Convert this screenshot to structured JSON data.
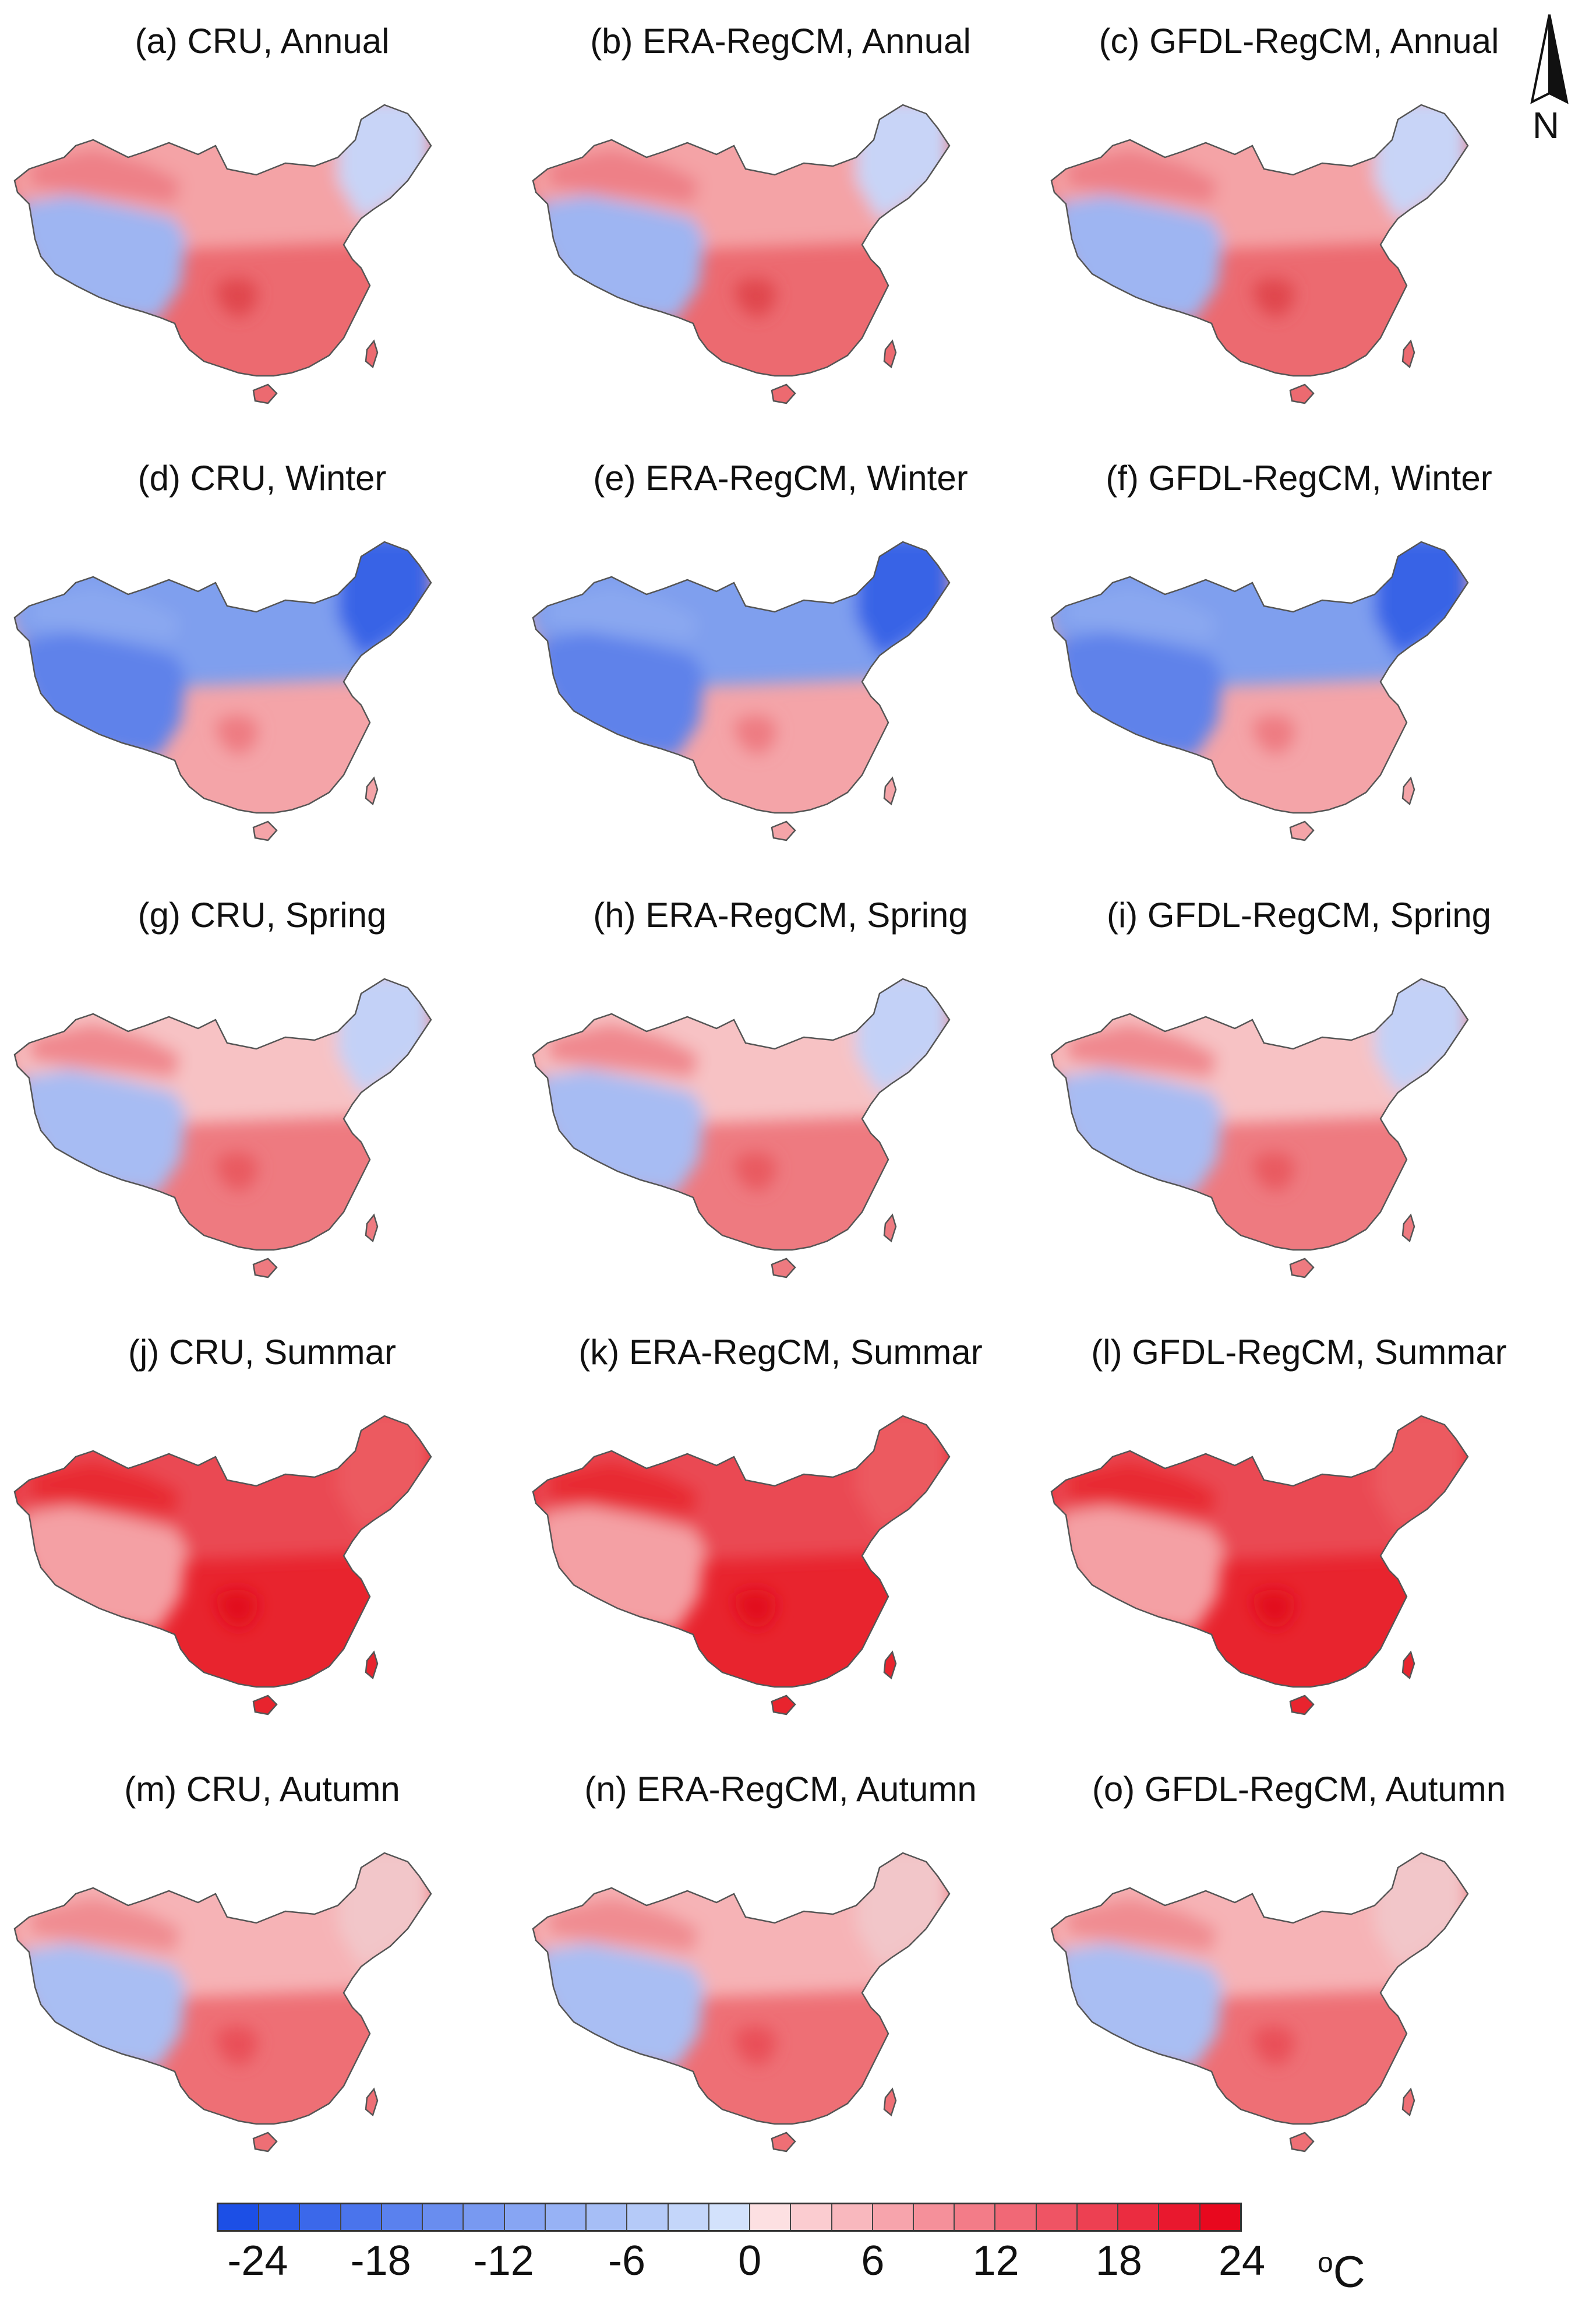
{
  "figure": {
    "panels": [
      {
        "id": "a",
        "title": "(a) CRU, Annual",
        "season": "annual"
      },
      {
        "id": "b",
        "title": "(b) ERA-RegCM, Annual",
        "season": "annual"
      },
      {
        "id": "c",
        "title": "(c) GFDL-RegCM, Annual",
        "season": "annual"
      },
      {
        "id": "d",
        "title": "(d) CRU, Winter",
        "season": "winter"
      },
      {
        "id": "e",
        "title": "(e) ERA-RegCM, Winter",
        "season": "winter"
      },
      {
        "id": "f",
        "title": "(f) GFDL-RegCM, Winter",
        "season": "winter"
      },
      {
        "id": "g",
        "title": "(g) CRU, Spring",
        "season": "spring"
      },
      {
        "id": "h",
        "title": "(h) ERA-RegCM, Spring",
        "season": "spring"
      },
      {
        "id": "i",
        "title": "(i) GFDL-RegCM, Spring",
        "season": "spring"
      },
      {
        "id": "j",
        "title": "(j) CRU, Summar",
        "season": "summer"
      },
      {
        "id": "k",
        "title": "(k) ERA-RegCM, Summar",
        "season": "summer"
      },
      {
        "id": "l",
        "title": "(l) GFDL-RegCM, Summar",
        "season": "summer"
      },
      {
        "id": "m",
        "title": "(m) CRU, Autumn",
        "season": "autumn"
      },
      {
        "id": "n",
        "title": "(n) ERA-RegCM, Autumn",
        "season": "autumn"
      },
      {
        "id": "o",
        "title": "(o) GFDL-RegCM, Autumn",
        "season": "autumn"
      }
    ],
    "north_label": "N",
    "colorbar": {
      "ticks": [
        "-24",
        "-18",
        "-12",
        "-6",
        "0",
        "6",
        "12",
        "18",
        "24"
      ],
      "unit_deg": "o",
      "unit_letter": "C",
      "colors": [
        "#1c4fe6",
        "#2c5ce8",
        "#3b68ea",
        "#4a74ec",
        "#5a81ee",
        "#698def",
        "#7899f1",
        "#87a5f3",
        "#97b2f5",
        "#a6bef6",
        "#b5caf8",
        "#c4d6fa",
        "#d3e2fc",
        "#fde0e2",
        "#fbccd0",
        "#f9b8be",
        "#f7a4ac",
        "#f5909a",
        "#f37c88",
        "#f16876",
        "#ef5464",
        "#ed4052",
        "#eb2c40",
        "#e9182e",
        "#e8081e"
      ]
    },
    "season_fill": {
      "annual": {
        "south": "#ec6a70",
        "north": "#f4a3a6",
        "plateau": "#9eb5f2",
        "northeast": "#c8d4f7",
        "basin": "#e0464e",
        "desert": "#ee8087"
      },
      "winter": {
        "south": "#f4a4a8",
        "north": "#7f9fee",
        "plateau": "#5e82ea",
        "northeast": "#3763e6",
        "basin": "#ee7c82",
        "desert": "#8aa7f0"
      },
      "spring": {
        "south": "#ee7a80",
        "north": "#f7c2c4",
        "plateau": "#a7bcf3",
        "northeast": "#c3d1f7",
        "basin": "#e95a61",
        "desert": "#f0888e"
      },
      "summer": {
        "south": "#e8242e",
        "north": "#ea4a52",
        "plateau": "#f4a0a4",
        "northeast": "#ec5a60",
        "basin": "#e2101b",
        "desert": "#e82a33"
      },
      "autumn": {
        "south": "#ee6f75",
        "north": "#f6b3b6",
        "plateau": "#a9bef3",
        "northeast": "#f2c6c9",
        "basin": "#e95058",
        "desert": "#f08c91"
      }
    }
  }
}
